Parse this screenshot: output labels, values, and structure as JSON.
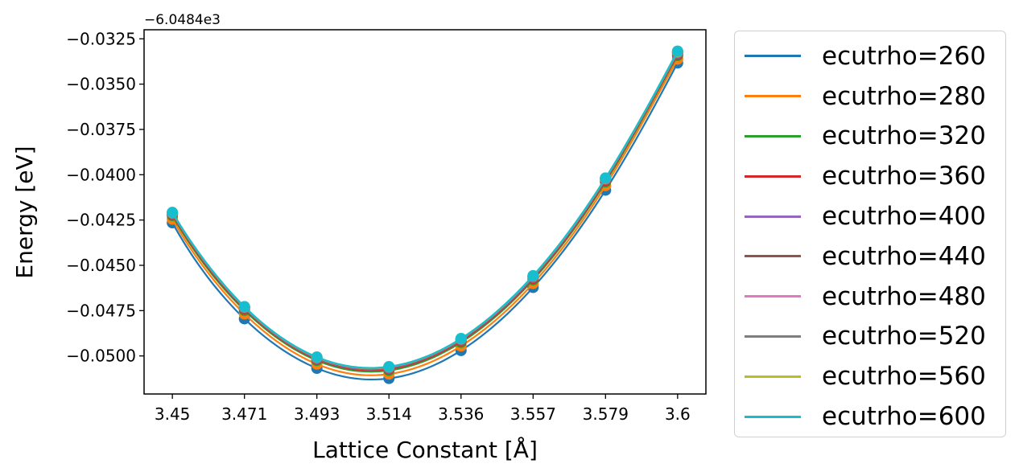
{
  "chart_data": {
    "type": "line",
    "title": "",
    "xlabel": "Lattice Constant [Å]",
    "ylabel": "Energy [eV]",
    "y_offset_label": "−6.0484e3",
    "x_ticks": [
      "3.45",
      "3.471",
      "3.493",
      "3.514",
      "3.536",
      "3.557",
      "3.579",
      "3.6"
    ],
    "x": [
      3.45,
      3.4714,
      3.4929,
      3.5143,
      3.5357,
      3.5571,
      3.5786,
      3.6
    ],
    "y_ticks": [
      "−0.0325",
      "−0.0350",
      "−0.0375",
      "−0.0400",
      "−0.0425",
      "−0.0450",
      "−0.0475",
      "−0.0500"
    ],
    "y_tick_values": [
      -0.0325,
      -0.035,
      -0.0375,
      -0.04,
      -0.0425,
      -0.045,
      -0.0475,
      -0.05
    ],
    "xlim": [
      3.4416,
      3.6084
    ],
    "ylim": [
      -0.0521,
      -0.032
    ],
    "grid": false,
    "legend_position": "outside right",
    "series": [
      {
        "name": "ecutrho=260",
        "color": "#1f77b4",
        "values": [
          -0.04265,
          -0.04795,
          -0.05068,
          -0.05124,
          -0.0497,
          -0.04622,
          -0.04085,
          -0.03383
        ]
      },
      {
        "name": "ecutrho=280",
        "color": "#ff7f0e",
        "values": [
          -0.04245,
          -0.04768,
          -0.05045,
          -0.051,
          -0.04945,
          -0.046,
          -0.0406,
          -0.03362
        ]
      },
      {
        "name": "ecutrho=320",
        "color": "#2ca02c",
        "values": [
          -0.04225,
          -0.04748,
          -0.05025,
          -0.0508,
          -0.04925,
          -0.0458,
          -0.0404,
          -0.03342
        ]
      },
      {
        "name": "ecutrho=360",
        "color": "#d62728",
        "values": [
          -0.04218,
          -0.0474,
          -0.05018,
          -0.05072,
          -0.04917,
          -0.04572,
          -0.04032,
          -0.03335
        ]
      },
      {
        "name": "ecutrho=400",
        "color": "#9467bd",
        "values": [
          -0.04214,
          -0.04735,
          -0.05014,
          -0.05067,
          -0.04912,
          -0.04566,
          -0.04026,
          -0.03329
        ]
      },
      {
        "name": "ecutrho=440",
        "color": "#8c564b",
        "values": [
          -0.04212,
          -0.04733,
          -0.05011,
          -0.05064,
          -0.04909,
          -0.04563,
          -0.04023,
          -0.03326
        ]
      },
      {
        "name": "ecutrho=480",
        "color": "#e377c2",
        "values": [
          -0.04211,
          -0.04731,
          -0.05009,
          -0.05062,
          -0.04907,
          -0.04561,
          -0.04021,
          -0.03324
        ]
      },
      {
        "name": "ecutrho=520",
        "color": "#7f7f7f",
        "values": [
          -0.0421,
          -0.0473,
          -0.05008,
          -0.05061,
          -0.04906,
          -0.0456,
          -0.0402,
          -0.03322
        ]
      },
      {
        "name": "ecutrho=560",
        "color": "#bcbd22",
        "values": [
          -0.04209,
          -0.04729,
          -0.05007,
          -0.0506,
          -0.04905,
          -0.04558,
          -0.04019,
          -0.0332
        ]
      },
      {
        "name": "ecutrho=600",
        "color": "#17becf",
        "values": [
          -0.04208,
          -0.04728,
          -0.05006,
          -0.05059,
          -0.04904,
          -0.04557,
          -0.04018,
          -0.03318
        ]
      }
    ]
  }
}
